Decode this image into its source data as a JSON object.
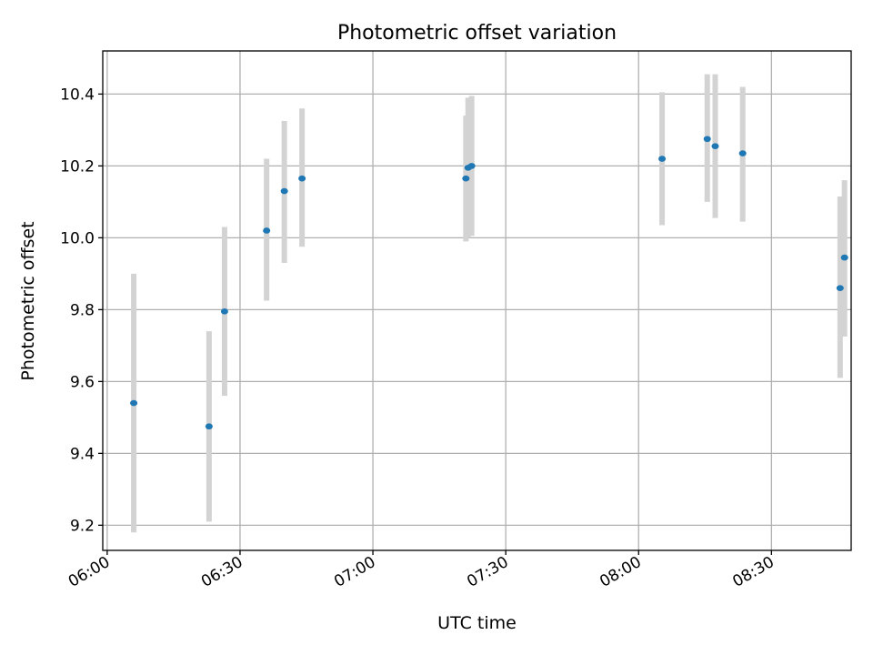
{
  "chart_data": {
    "type": "scatter",
    "title": "Photometric offset variation",
    "xlabel": "UTC time",
    "ylabel": "Photometric offset",
    "x_unit": "time",
    "xlim": [
      "05:59",
      "08:48"
    ],
    "ylim": [
      9.13,
      10.52
    ],
    "x_ticks": [
      "06:00",
      "06:30",
      "07:00",
      "07:30",
      "08:00",
      "08:30"
    ],
    "y_ticks": [
      "9.2",
      "9.4",
      "9.6",
      "9.8",
      "10.0",
      "10.2",
      "10.4"
    ],
    "grid": true,
    "colors": {
      "point": "#1f77b4",
      "error_bar": "#d3d3d3"
    },
    "points": [
      {
        "x": "06:06",
        "y": 9.54,
        "y_low": 9.18,
        "y_high": 9.9
      },
      {
        "x": "06:23",
        "y": 9.475,
        "y_low": 9.21,
        "y_high": 9.74
      },
      {
        "x": "06:26.5",
        "y": 9.795,
        "y_low": 9.56,
        "y_high": 10.03
      },
      {
        "x": "06:36",
        "y": 10.02,
        "y_low": 9.825,
        "y_high": 10.22
      },
      {
        "x": "06:40",
        "y": 10.13,
        "y_low": 9.93,
        "y_high": 10.325
      },
      {
        "x": "06:44",
        "y": 10.165,
        "y_low": 9.975,
        "y_high": 10.36
      },
      {
        "x": "07:21",
        "y": 10.165,
        "y_low": 9.99,
        "y_high": 10.34
      },
      {
        "x": "07:21.5",
        "y": 10.195,
        "y_low": 10.0,
        "y_high": 10.39
      },
      {
        "x": "07:22.3",
        "y": 10.2,
        "y_low": 10.005,
        "y_high": 10.395
      },
      {
        "x": "08:05.3",
        "y": 10.22,
        "y_low": 10.035,
        "y_high": 10.405
      },
      {
        "x": "08:15.5",
        "y": 10.275,
        "y_low": 10.1,
        "y_high": 10.455
      },
      {
        "x": "08:17.3",
        "y": 10.255,
        "y_low": 10.055,
        "y_high": 10.455
      },
      {
        "x": "08:23.5",
        "y": 10.235,
        "y_low": 10.045,
        "y_high": 10.42
      },
      {
        "x": "08:45.5",
        "y": 9.86,
        "y_low": 9.61,
        "y_high": 10.115
      },
      {
        "x": "08:46.5",
        "y": 9.945,
        "y_low": 9.725,
        "y_high": 10.16
      }
    ]
  }
}
